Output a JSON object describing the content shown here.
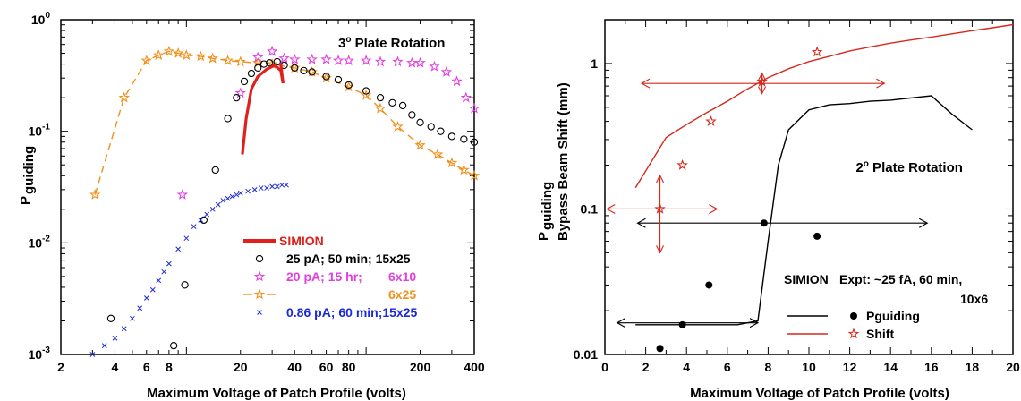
{
  "colors": {
    "simion": "#e0201c",
    "black": "#000000",
    "magenta": "#e040e0",
    "orange": "#f0901c",
    "blue": "#1c28d8",
    "red": "#d8281c"
  },
  "chart_data": [
    {
      "type": "scatter",
      "xscale": "log",
      "yscale": "log",
      "xlim": [
        2,
        400
      ],
      "ylim": [
        0.001,
        1
      ],
      "xlabel": "Maximum Voltage of Patch Profile (volts)",
      "ylabel_main": "P",
      "ylabel_sub": "guiding",
      "x_ticks": [
        "2",
        "4",
        "6",
        "8",
        "20",
        "40",
        "60",
        "80",
        "200",
        "400"
      ],
      "x_tick_values": [
        2,
        4,
        6,
        8,
        20,
        40,
        60,
        80,
        200,
        400
      ],
      "y_ticks": [
        {
          "base": "10",
          "exp": "-3",
          "value": 0.001
        },
        {
          "base": "10",
          "exp": "-2",
          "value": 0.01
        },
        {
          "base": "10",
          "exp": "-1",
          "value": 0.1
        },
        {
          "base": "10",
          "exp": "0",
          "value": 1
        }
      ],
      "annotation": {
        "main": "3",
        "sup": "o",
        "rest": " Plate Rotation"
      },
      "legend": [
        {
          "label": "SIMION",
          "color": "#e0201c",
          "marker": "line"
        },
        {
          "label": "25 pA; 50 min; 15x25",
          "color": "#000000",
          "marker": "circle"
        },
        {
          "label": "20 pA; 15 hr;",
          "label2": "6x10",
          "color": "#e040e0",
          "marker": "star"
        },
        {
          "label": "6x25",
          "color": "#f0901c",
          "marker": "dashstar"
        },
        {
          "label": "0.86 pA; 60 min;15x25",
          "color": "#1c28d8",
          "marker": "x"
        }
      ],
      "series": [
        {
          "key": "simion",
          "x": [
            20.5,
            21.5,
            23,
            25,
            28,
            31,
            33.5,
            34.5
          ],
          "y": [
            0.062,
            0.13,
            0.24,
            0.31,
            0.36,
            0.39,
            0.35,
            0.27
          ]
        },
        {
          "key": "simion_drop",
          "x": [
            33.5,
            34.5
          ],
          "y": [
            0.4,
            0.27
          ]
        },
        {
          "key": "c25pA",
          "x": [
            3.8,
            8.5,
            9.8,
            12.5,
            14.5,
            17,
            19,
            21,
            23,
            25,
            27,
            29,
            32,
            35,
            40,
            45,
            50,
            60,
            70,
            80,
            100,
            120,
            140,
            160,
            180,
            200,
            230,
            260,
            300,
            350,
            400
          ],
          "y": [
            0.0021,
            0.0012,
            0.0042,
            0.016,
            0.045,
            0.13,
            0.2,
            0.28,
            0.33,
            0.37,
            0.4,
            0.41,
            0.42,
            0.39,
            0.37,
            0.35,
            0.34,
            0.31,
            0.29,
            0.26,
            0.23,
            0.2,
            0.18,
            0.17,
            0.14,
            0.12,
            0.11,
            0.1,
            0.09,
            0.085,
            0.08
          ]
        },
        {
          "key": "c20pA",
          "x": [
            9.5,
            20,
            25,
            30,
            35,
            40,
            50,
            60,
            70,
            80,
            100,
            120,
            150,
            180,
            200,
            240,
            280,
            320,
            360,
            400
          ],
          "y": [
            0.027,
            0.22,
            0.46,
            0.52,
            0.45,
            0.44,
            0.44,
            0.44,
            0.43,
            0.43,
            0.43,
            0.42,
            0.42,
            0.41,
            0.41,
            0.38,
            0.34,
            0.28,
            0.2,
            0.16
          ]
        },
        {
          "key": "c6x25",
          "x": [
            3.1,
            4.5,
            6,
            7,
            8,
            9,
            10,
            12,
            14,
            17,
            20,
            25,
            30,
            40,
            50,
            60,
            80,
            100,
            120,
            150,
            200,
            250,
            300,
            350,
            400
          ],
          "y": [
            0.027,
            0.2,
            0.43,
            0.48,
            0.52,
            0.5,
            0.48,
            0.47,
            0.45,
            0.43,
            0.42,
            0.41,
            0.4,
            0.37,
            0.34,
            0.3,
            0.25,
            0.21,
            0.16,
            0.11,
            0.075,
            0.062,
            0.052,
            0.045,
            0.04
          ]
        },
        {
          "key": "c086",
          "x": [
            3,
            3.5,
            4,
            4.5,
            5,
            5.5,
            6,
            6.5,
            7,
            7.5,
            8,
            9,
            10,
            11,
            12,
            13,
            14,
            15,
            16,
            17,
            18,
            19,
            20,
            22,
            24,
            26,
            28,
            30,
            32,
            34,
            36
          ],
          "y": [
            0.001,
            0.0012,
            0.0014,
            0.0017,
            0.0021,
            0.0026,
            0.0032,
            0.0038,
            0.0046,
            0.0055,
            0.0065,
            0.0088,
            0.011,
            0.014,
            0.016,
            0.018,
            0.02,
            0.022,
            0.024,
            0.025,
            0.026,
            0.027,
            0.028,
            0.029,
            0.03,
            0.031,
            0.031,
            0.032,
            0.032,
            0.033,
            0.033
          ]
        }
      ]
    },
    {
      "type": "line",
      "xscale": "linear",
      "yscale": "log",
      "xlim": [
        0,
        20
      ],
      "ylim": [
        0.01,
        2
      ],
      "xlabel": "Maximum Voltage of Patch Profile  (volts)",
      "ylabel_main": "P",
      "ylabel_sub": "guiding",
      "ylabel_red": "Bypass Beam Shift (mm)",
      "x_ticks": [
        "0",
        "2",
        "4",
        "6",
        "8",
        "10",
        "12",
        "14",
        "16",
        "18",
        "20"
      ],
      "y_ticks": [
        "0.01",
        "0.1",
        "1"
      ],
      "y_tick_values": [
        0.01,
        0.1,
        1
      ],
      "annotation": {
        "main": "2",
        "sup": "o",
        "rest": " Plate Rotation"
      },
      "legend_title_left": "SIMION",
      "legend_title_right": "Expt: ~25 fA, 60 min,",
      "legend_title_right2": "10x6",
      "legend": [
        {
          "label": "Pguiding",
          "color": "#000000"
        },
        {
          "label": "Shift",
          "color": "#d8281c"
        }
      ],
      "series": [
        {
          "key": "simion_pguiding",
          "x": [
            1.5,
            2.5,
            3.5,
            4.5,
            5.5,
            6.5,
            7.5,
            8.0,
            8.5,
            9.0,
            10.0,
            11,
            12,
            13,
            14,
            15,
            16,
            17,
            18
          ],
          "y": [
            0.016,
            0.016,
            0.016,
            0.016,
            0.016,
            0.016,
            0.017,
            0.06,
            0.2,
            0.35,
            0.48,
            0.52,
            0.53,
            0.55,
            0.56,
            0.58,
            0.6,
            0.45,
            0.35
          ]
        },
        {
          "key": "simion_shift",
          "x": [
            1.5,
            3.0,
            4.0,
            5.0,
            6.0,
            7.0,
            8.0,
            9.0,
            10.0,
            11.0,
            12.0,
            13.0,
            14.0,
            15.0,
            16.0,
            17.0,
            18.0,
            19.0,
            20.0
          ],
          "y": [
            0.14,
            0.31,
            0.38,
            0.46,
            0.55,
            0.67,
            0.8,
            0.92,
            1.03,
            1.12,
            1.22,
            1.3,
            1.38,
            1.45,
            1.52,
            1.6,
            1.68,
            1.76,
            1.85
          ]
        },
        {
          "key": "expt_pguiding",
          "x": [
            2.7,
            3.8,
            5.1,
            7.8,
            10.4
          ],
          "y": [
            0.011,
            0.016,
            0.03,
            0.08,
            0.065
          ]
        },
        {
          "key": "expt_shift",
          "x": [
            2.7,
            3.8,
            5.2,
            7.7,
            10.4
          ],
          "y": [
            0.1,
            0.2,
            0.4,
            0.75,
            1.2
          ]
        }
      ]
    }
  ]
}
